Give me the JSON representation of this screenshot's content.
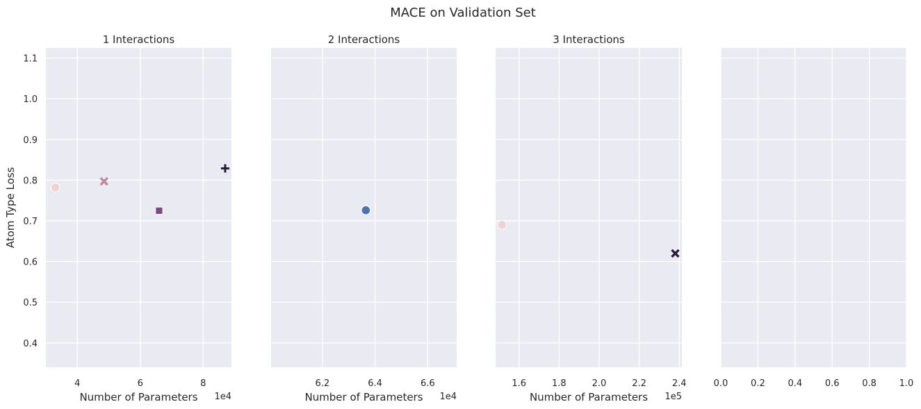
{
  "figure_title": "MACE on Validation Set",
  "colors": {
    "panel_bg": "#EAEAF2",
    "grid": "#FFFFFF",
    "text": "#262626",
    "pink_light": "#EFD3D0",
    "pink_mid": "#C2879A",
    "purple": "#7C4A7E",
    "dark": "#2B1B3C",
    "blue": "#4C72B0"
  },
  "chart_data": [
    {
      "type": "scatter",
      "title": "1 Interactions",
      "xlabel": "Number of Parameters",
      "ylabel": "Atom Type Loss",
      "x_offset_text": "1e4",
      "xlim": [
        3.0,
        8.9
      ],
      "ylim": [
        0.34,
        1.125
      ],
      "xticks": [
        4,
        6,
        8
      ],
      "xtick_labels": [
        "4",
        "6",
        "8"
      ],
      "yticks": [
        0.4,
        0.5,
        0.6,
        0.7,
        0.8,
        0.9,
        1.0,
        1.1
      ],
      "ytick_labels": [
        "0.4",
        "0.5",
        "0.6",
        "0.7",
        "0.8",
        "0.9",
        "1.0",
        "1.1"
      ],
      "grid": true,
      "points": [
        {
          "x": 3.3,
          "y": 0.782,
          "marker": "circle",
          "color": "#EFD3D0"
        },
        {
          "x": 4.85,
          "y": 0.797,
          "marker": "x",
          "color": "#C2879A"
        },
        {
          "x": 6.6,
          "y": 0.725,
          "marker": "square",
          "color": "#7C4A7E"
        },
        {
          "x": 8.7,
          "y": 0.829,
          "marker": "plus",
          "color": "#2B1B3C"
        }
      ]
    },
    {
      "type": "scatter",
      "title": "2 Interactions",
      "xlabel": "Number of Parameters",
      "ylabel": "",
      "x_offset_text": "1e4",
      "xlim": [
        6.005,
        6.71
      ],
      "ylim": [
        0.34,
        1.125
      ],
      "xticks": [
        6.2,
        6.4,
        6.6
      ],
      "xtick_labels": [
        "6.2",
        "6.4",
        "6.6"
      ],
      "yticks": [
        0.4,
        0.5,
        0.6,
        0.7,
        0.8,
        0.9,
        1.0,
        1.1
      ],
      "ytick_labels": [],
      "grid": true,
      "points": [
        {
          "x": 6.365,
          "y": 0.726,
          "marker": "circle",
          "color": "#4C72B0"
        }
      ]
    },
    {
      "type": "scatter",
      "title": "3 Interactions",
      "xlabel": "Number of Parameters",
      "ylabel": "",
      "x_offset_text": "1e5",
      "xlim": [
        1.483,
        2.413
      ],
      "ylim": [
        0.34,
        1.125
      ],
      "xticks": [
        1.6,
        1.8,
        2.0,
        2.2,
        2.4
      ],
      "xtick_labels": [
        "1.6",
        "1.8",
        "2.0",
        "2.2",
        "2.4"
      ],
      "yticks": [
        0.4,
        0.5,
        0.6,
        0.7,
        0.8,
        0.9,
        1.0,
        1.1
      ],
      "ytick_labels": [],
      "grid": true,
      "points": [
        {
          "x": 1.515,
          "y": 0.69,
          "marker": "circle",
          "color": "#EFD3D0"
        },
        {
          "x": 2.38,
          "y": 0.62,
          "marker": "x",
          "color": "#2B1B3C"
        }
      ]
    },
    {
      "type": "scatter",
      "title": "",
      "xlabel": "",
      "ylabel": "",
      "x_offset_text": "",
      "xlim": [
        0.0,
        1.0
      ],
      "ylim": [
        0.34,
        1.125
      ],
      "xticks": [
        0.0,
        0.2,
        0.4,
        0.6,
        0.8,
        1.0
      ],
      "xtick_labels": [
        "0.0",
        "0.2",
        "0.4",
        "0.6",
        "0.8",
        "1.0"
      ],
      "yticks": [
        0.4,
        0.5,
        0.6,
        0.7,
        0.8,
        0.9,
        1.0,
        1.1
      ],
      "ytick_labels": [],
      "grid": true,
      "points": []
    }
  ]
}
